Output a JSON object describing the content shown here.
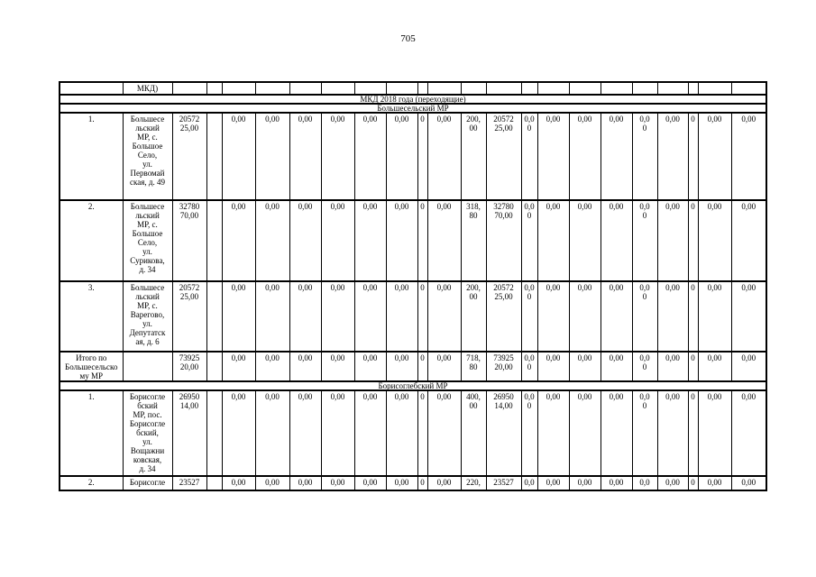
{
  "page": {
    "number": "705"
  },
  "table": {
    "rows": [
      {
        "id": "continuation-header",
        "kind": "grid",
        "thick": false,
        "cells": [
          "",
          "МКД)",
          "",
          "",
          "",
          "",
          "",
          "",
          "",
          "",
          "",
          "",
          "",
          "",
          "",
          "",
          "",
          "",
          "",
          "",
          "",
          "",
          ""
        ]
      },
      {
        "id": "band-year",
        "kind": "band",
        "thick": true,
        "label": "МКД 2018 года (переходящие)"
      },
      {
        "id": "band-bolsheselsky",
        "kind": "band",
        "thick": true,
        "label": "Большесельский МР"
      },
      {
        "id": "row-1",
        "kind": "grid",
        "thick": true,
        "cells": [
          "1.",
          "Большесе\nльский\nМР, с.\nБольшое\nСело,\nул.\nПервомай\nская, д. 49",
          "20572\n25,00",
          "",
          "0,00",
          "0,00",
          "0,00",
          "0,00",
          "0,00",
          "0,00",
          "0",
          "0,00",
          "200,\n00",
          "20572\n25,00",
          "0,0\n0",
          "0,00",
          "0,00",
          "0,00",
          "0,0\n0",
          "0,00",
          "0",
          "0,00",
          "0,00"
        ]
      },
      {
        "id": "row-2",
        "kind": "grid",
        "thick": true,
        "cells": [
          "2.",
          "Большесе\nльский\nМР, с.\nБольшое\nСело,\nул.\nСурикова,\nд. 34",
          "32780\n70,00",
          "",
          "0,00",
          "0,00",
          "0,00",
          "0,00",
          "0,00",
          "0,00",
          "0",
          "0,00",
          "318,\n80",
          "32780\n70,00",
          "0,0\n0",
          "0,00",
          "0,00",
          "0,00",
          "0,0\n0",
          "0,00",
          "0",
          "0,00",
          "0,00"
        ]
      },
      {
        "id": "row-3",
        "kind": "grid",
        "thick": true,
        "cells": [
          "3.",
          "Большесе\nльский\nМР, с.\nВарегово,\nул.\nДепутатск\nая, д. 6",
          "20572\n25,00",
          "",
          "0,00",
          "0,00",
          "0,00",
          "0,00",
          "0,00",
          "0,00",
          "0",
          "0,00",
          "200,\n00",
          "20572\n25,00",
          "0,0\n0",
          "0,00",
          "0,00",
          "0,00",
          "0,0\n0",
          "0,00",
          "0",
          "0,00",
          "0,00"
        ]
      },
      {
        "id": "total-bolsheselsky",
        "kind": "grid",
        "thick": true,
        "cells": [
          "Итого по\nБольшесельско\nму МР",
          "",
          "73925\n20,00",
          "",
          "0,00",
          "0,00",
          "0,00",
          "0,00",
          "0,00",
          "0,00",
          "0",
          "0,00",
          "718,\n80",
          "73925\n20,00",
          "0,0\n0",
          "0,00",
          "0,00",
          "0,00",
          "0,0\n0",
          "0,00",
          "0",
          "0,00",
          "0,00"
        ]
      },
      {
        "id": "band-borisoglebsky",
        "kind": "band",
        "thick": true,
        "label": "Борисоглебский МР"
      },
      {
        "id": "row-4",
        "kind": "grid",
        "thick": true,
        "cells": [
          "1.",
          "Борисогле\nбский\nМР, пос.\nБорисогле\nбский,\nул.\nВощажни\nковская,\nд. 34",
          "26950\n14,00",
          "",
          "0,00",
          "0,00",
          "0,00",
          "0,00",
          "0,00",
          "0,00",
          "0",
          "0,00",
          "400,\n00",
          "26950\n14,00",
          "0,0\n0",
          "0,00",
          "0,00",
          "0,00",
          "0,0\n0",
          "0,00",
          "0",
          "0,00",
          "0,00"
        ]
      },
      {
        "id": "row-5",
        "kind": "grid",
        "thick": true,
        "cells": [
          "2.",
          "Борисогле",
          "23527",
          "",
          "0,00",
          "0,00",
          "0,00",
          "0,00",
          "0,00",
          "0,00",
          "0",
          "0,00",
          "220,",
          "23527",
          "0,0",
          "0,00",
          "0,00",
          "0,00",
          "0,0",
          "0,00",
          "0",
          "0,00",
          "0,00"
        ]
      }
    ]
  }
}
